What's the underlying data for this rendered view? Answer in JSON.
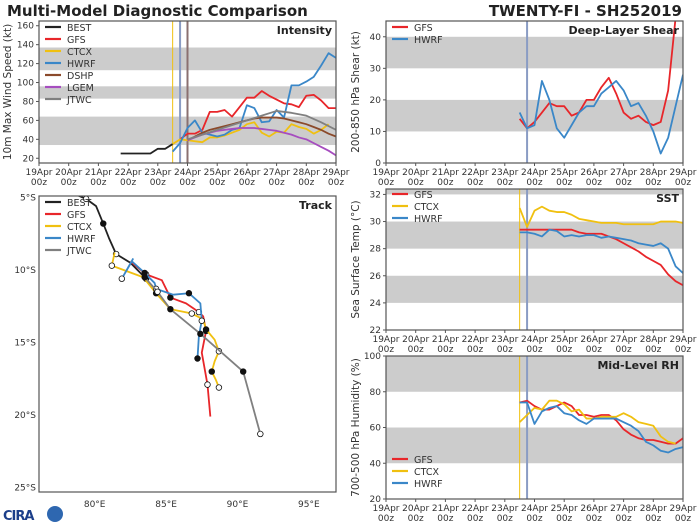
{
  "header": {
    "title": "Multi-Model Diagnostic Comparison",
    "storm": "TWENTY-FI - SH252019"
  },
  "colors": {
    "BEST": "#222222",
    "GFS": "#e8262a",
    "CTCX": "#f0c010",
    "HWRF": "#3a87c8",
    "DSHP": "#8b4a2b",
    "LGEM": "#a64dbf",
    "JTWC": "#808080",
    "band": "#cccccc",
    "init_ctcx": "#f0c010",
    "init_hwrf": "#8a9cc4",
    "init_other": "#8a7070"
  },
  "time_ticks": [
    "19Apr",
    "20Apr",
    "21Apr",
    "22Apr",
    "23Apr",
    "24Apr",
    "25Apr",
    "26Apr",
    "27Apr",
    "28Apr",
    "29Apr"
  ],
  "time_tick_sub": "00z",
  "series_step_hours": 6,
  "chart_data": [
    {
      "type": "line",
      "panel": "Intensity",
      "ylabel": "10m Max Wind Speed (kt)",
      "ylim": [
        15,
        165
      ],
      "yticks": [
        20,
        40,
        60,
        80,
        100,
        120,
        140,
        160
      ],
      "shaded_bands": [
        [
          34,
          64
        ],
        [
          83,
          96
        ],
        [
          113,
          137
        ]
      ],
      "init_lines": [
        {
          "model": "CTCX",
          "time": "23Apr12z"
        },
        {
          "model": "HWRF",
          "time": "23Apr18z"
        },
        {
          "model": "other",
          "time": "24Apr00z"
        }
      ],
      "legend": [
        "BEST",
        "GFS",
        "CTCX",
        "HWRF",
        "DSHP",
        "LGEM",
        "JTWC"
      ],
      "series": [
        {
          "name": "BEST",
          "start": "21Apr18z",
          "values": [
            25,
            25,
            25,
            25,
            25,
            30,
            30,
            35
          ]
        },
        {
          "name": "GFS",
          "start": "23Apr18z",
          "values": [
            40,
            46,
            46,
            50,
            69,
            69,
            71,
            64,
            74,
            84,
            84,
            91,
            86,
            82,
            78,
            77,
            74,
            86,
            87,
            81,
            73,
            73
          ]
        },
        {
          "name": "CTCX",
          "start": "23Apr12z",
          "values": [
            35,
            40,
            39,
            38,
            37,
            42,
            42,
            44,
            47,
            50,
            56,
            58,
            47,
            43,
            48,
            47,
            56,
            53,
            51,
            46,
            50,
            56
          ]
        },
        {
          "name": "HWRF",
          "start": "23Apr12z",
          "values": [
            27,
            36,
            52,
            60,
            47,
            45,
            43,
            45,
            50,
            52,
            76,
            73,
            58,
            59,
            71,
            63,
            97,
            97,
            101,
            106,
            118,
            131,
            126
          ]
        },
        {
          "name": "DSHP",
          "start": "24Apr00z",
          "values": [
            39,
            43,
            47,
            50,
            52,
            54,
            56,
            58,
            60,
            62,
            63,
            63,
            63,
            62,
            60,
            58,
            56,
            53,
            50,
            46,
            43
          ]
        },
        {
          "name": "LGEM",
          "start": "24Apr00z",
          "values": [
            39,
            42,
            45,
            47,
            49,
            50,
            51,
            52,
            52,
            52,
            51,
            50,
            49,
            47,
            45,
            42,
            40,
            36,
            32,
            28,
            23
          ]
        },
        {
          "name": "JTWC",
          "start": "24Apr00z",
          "step_hours": 12,
          "values": [
            40,
            45,
            50,
            55,
            60,
            65,
            70,
            68,
            65,
            58,
            50
          ]
        }
      ]
    },
    {
      "type": "line",
      "panel": "Deep-Layer Shear",
      "ylabel": "200-850 hPa Shear (kt)",
      "ylim": [
        0,
        45
      ],
      "yticks": [
        0,
        10,
        20,
        30,
        40
      ],
      "shaded_bands": [
        [
          10,
          20
        ],
        [
          30,
          40
        ]
      ],
      "init_lines": [
        {
          "model": "HWRF",
          "time": "23Apr18z"
        }
      ],
      "legend": [
        "GFS",
        "HWRF"
      ],
      "series": [
        {
          "name": "GFS",
          "start": "23Apr12z",
          "values": [
            14,
            11,
            13,
            16,
            19,
            18,
            18,
            15,
            16,
            20,
            20,
            24,
            27,
            22,
            16,
            14,
            15,
            13,
            12,
            13,
            23,
            46
          ]
        },
        {
          "name": "HWRF",
          "start": "23Apr12z",
          "values": [
            16,
            11,
            12,
            26,
            20,
            11,
            8,
            12,
            16,
            18,
            18,
            22,
            24,
            26,
            23,
            18,
            19,
            15,
            10,
            3,
            8,
            18,
            28
          ]
        }
      ]
    },
    {
      "type": "line",
      "panel": "SST",
      "ylabel": "Sea Surface Temp (°C)",
      "ylim": [
        22,
        32.4
      ],
      "yticks": [
        22,
        24,
        26,
        28,
        30,
        32
      ],
      "shaded_bands": [
        [
          24,
          26
        ],
        [
          28,
          30
        ],
        [
          32,
          34
        ]
      ],
      "init_lines": [
        {
          "model": "CTCX",
          "time": "23Apr12z"
        },
        {
          "model": "HWRF",
          "time": "23Apr18z"
        }
      ],
      "legend": [
        "GFS",
        "CTCX",
        "HWRF"
      ],
      "series": [
        {
          "name": "GFS",
          "start": "23Apr12z",
          "values": [
            29.4,
            29.4,
            29.4,
            29.4,
            29.4,
            29.4,
            29.4,
            29.4,
            29.2,
            29.1,
            29.1,
            29.1,
            28.9,
            28.7,
            28.4,
            28.1,
            27.8,
            27.4,
            27.1,
            26.8,
            26.1,
            25.6,
            25.3
          ]
        },
        {
          "name": "CTCX",
          "start": "23Apr12z",
          "values": [
            31.0,
            29.6,
            30.8,
            31.1,
            30.8,
            30.7,
            30.7,
            30.5,
            30.2,
            30.1,
            30.0,
            29.9,
            29.9,
            29.9,
            29.8,
            29.8,
            29.8,
            29.8,
            29.8,
            30.0,
            30.0,
            30.0,
            29.9
          ]
        },
        {
          "name": "HWRF",
          "start": "23Apr12z",
          "values": [
            29.2,
            29.2,
            29.1,
            28.9,
            29.4,
            29.3,
            28.9,
            29.0,
            28.9,
            29.0,
            29.0,
            28.8,
            28.9,
            28.8,
            28.7,
            28.6,
            28.4,
            28.3,
            28.2,
            28.4,
            28.0,
            26.7,
            26.2
          ]
        }
      ]
    },
    {
      "type": "line",
      "panel": "Mid-Level RH",
      "ylabel": "700-500 hPa Humidity (%)",
      "ylim": [
        20,
        100
      ],
      "yticks": [
        20,
        40,
        60,
        80,
        100
      ],
      "shaded_bands": [
        [
          40,
          60
        ],
        [
          80,
          100
        ]
      ],
      "init_lines": [
        {
          "model": "CTCX",
          "time": "23Apr12z"
        },
        {
          "model": "HWRF",
          "time": "23Apr18z"
        }
      ],
      "legend": [
        "GFS",
        "CTCX",
        "HWRF"
      ],
      "series": [
        {
          "name": "GFS",
          "start": "23Apr12z",
          "values": [
            74,
            75,
            72,
            70,
            70,
            72,
            74,
            72,
            67,
            67,
            66,
            67,
            67,
            64,
            59,
            56,
            54,
            53,
            53,
            52,
            51,
            51,
            54
          ]
        },
        {
          "name": "CTCX",
          "start": "23Apr12z",
          "values": [
            63,
            67,
            71,
            70,
            75,
            75,
            73,
            69,
            70,
            65,
            65,
            66,
            66,
            66,
            68,
            66,
            63,
            62,
            61,
            55,
            52,
            51
          ]
        },
        {
          "name": "HWRF",
          "start": "23Apr12z",
          "values": [
            74,
            74,
            62,
            69,
            71,
            72,
            68,
            67,
            64,
            62,
            65,
            65,
            65,
            65,
            63,
            61,
            58,
            52,
            50,
            47,
            46,
            48,
            49
          ]
        }
      ]
    },
    {
      "type": "line",
      "panel": "Track",
      "xlim": [
        76.1,
        96.9
      ],
      "ylim": [
        -25.3,
        -4.9
      ],
      "xticks": [
        {
          "v": 80,
          "label": "80°E"
        },
        {
          "v": 85,
          "label": "85°E"
        },
        {
          "v": 90,
          "label": "90°E"
        },
        {
          "v": 95,
          "label": "95°E"
        }
      ],
      "yticks": [
        {
          "v": -5,
          "label": "5°S"
        },
        {
          "v": -10,
          "label": "10°S"
        },
        {
          "v": -15,
          "label": "15°S"
        },
        {
          "v": -20,
          "label": "20°S"
        },
        {
          "v": -25,
          "label": "25°S"
        }
      ],
      "legend": [
        "BEST",
        "GFS",
        "CTCX",
        "HWRF",
        "JTWC"
      ],
      "series": [
        {
          "name": "BEST",
          "points": [
            [
              78.2,
              -4.6
            ],
            [
              79.4,
              -5.1
            ],
            [
              80.1,
              -5.6
            ],
            [
              80.6,
              -6.8
            ],
            [
              81.0,
              -7.8
            ],
            [
              81.5,
              -8.9
            ],
            [
              82.5,
              -9.5
            ],
            [
              83.6,
              -10.6
            ]
          ]
        },
        {
          "name": "GFS",
          "points": [
            [
              82.5,
              -9.4
            ],
            [
              83.6,
              -10.3
            ],
            [
              84.7,
              -10.7
            ],
            [
              85.3,
              -11.9
            ],
            [
              86.4,
              -12.3
            ],
            [
              87.3,
              -12.9
            ],
            [
              87.6,
              -13.2
            ],
            [
              87.8,
              -14.2
            ],
            [
              87.5,
              -15.7
            ],
            [
              87.9,
              -17.9
            ],
            [
              88.1,
              -20.1
            ]
          ]
        },
        {
          "name": "CTCX",
          "points": [
            [
              81.4,
              -8.8
            ],
            [
              81.2,
              -9.7
            ],
            [
              83.4,
              -10.5
            ],
            [
              84.3,
              -11.6
            ],
            [
              85.3,
              -12.7
            ],
            [
              86.8,
              -13.0
            ],
            [
              87.6,
              -13.4
            ],
            [
              87.8,
              -14.1
            ],
            [
              88.4,
              -14.8
            ],
            [
              88.7,
              -15.6
            ],
            [
              88.4,
              -16.3
            ],
            [
              88.2,
              -17.0
            ],
            [
              88.5,
              -17.6
            ],
            [
              88.7,
              -18.1
            ]
          ]
        },
        {
          "name": "HWRF",
          "points": [
            [
              82.7,
              -9.2
            ],
            [
              81.9,
              -10.6
            ],
            [
              82.6,
              -9.4
            ],
            [
              83.5,
              -10.2
            ],
            [
              84.2,
              -10.9
            ],
            [
              84.3,
              -11.3
            ],
            [
              85.5,
              -11.7
            ],
            [
              86.6,
              -11.6
            ],
            [
              87.4,
              -12.3
            ],
            [
              87.5,
              -13.5
            ],
            [
              87.3,
              -14.5
            ],
            [
              87.2,
              -16.1
            ]
          ]
        },
        {
          "name": "JTWC",
          "points": [
            [
              83.5,
              -10.5
            ],
            [
              84.4,
              -11.5
            ],
            [
              85.3,
              -12.7
            ],
            [
              87.4,
              -14.4
            ],
            [
              90.4,
              -17.0
            ],
            [
              91.6,
              -21.3
            ]
          ]
        }
      ]
    }
  ],
  "logo": "CIRA"
}
